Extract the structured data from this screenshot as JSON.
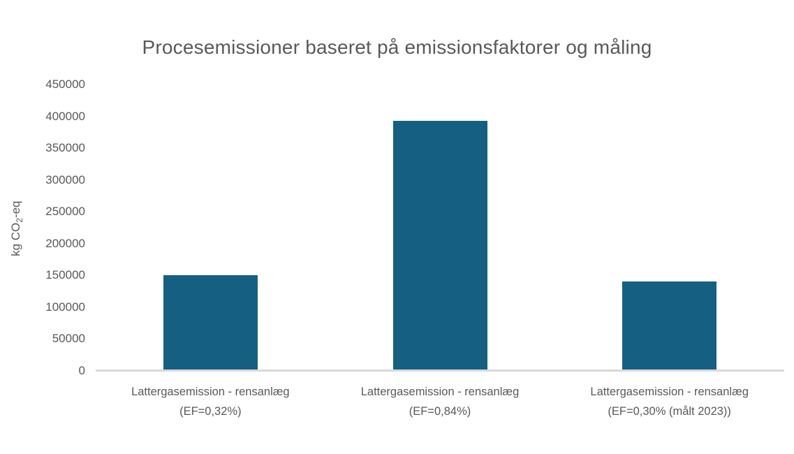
{
  "chart": {
    "title": "Procesemissioner baseret på emissionsfaktorer og måling",
    "ylabel_prefix": "kg CO",
    "ylabel_subscript": "2",
    "ylabel_suffix": "-eq"
  },
  "chart_data": {
    "type": "bar",
    "title": "Procesemissioner baseret på emissionsfaktorer og måling",
    "ylabel": "kg CO₂-eq",
    "xlabel": "",
    "categories": [
      "Lattergasemission - rensanlæg\n(EF=0,32%)",
      "Lattergasemission - rensanlæg\n(EF=0,84%)",
      "Lattergasemission - rensanlæg\n(EF=0,30% (målt 2023))"
    ],
    "values": [
      150000,
      393000,
      140000
    ],
    "ylim": [
      0,
      450000
    ],
    "ytick_step": 50000,
    "ytick_labels": [
      "0",
      "50000",
      "100000",
      "150000",
      "200000",
      "250000",
      "300000",
      "350000",
      "400000",
      "450000"
    ],
    "grid": false,
    "legend_position": "none",
    "colors": {
      "bar": "#156082",
      "text": "#595959",
      "axis_line": "#d9d9d9",
      "background": "#ffffff"
    }
  }
}
